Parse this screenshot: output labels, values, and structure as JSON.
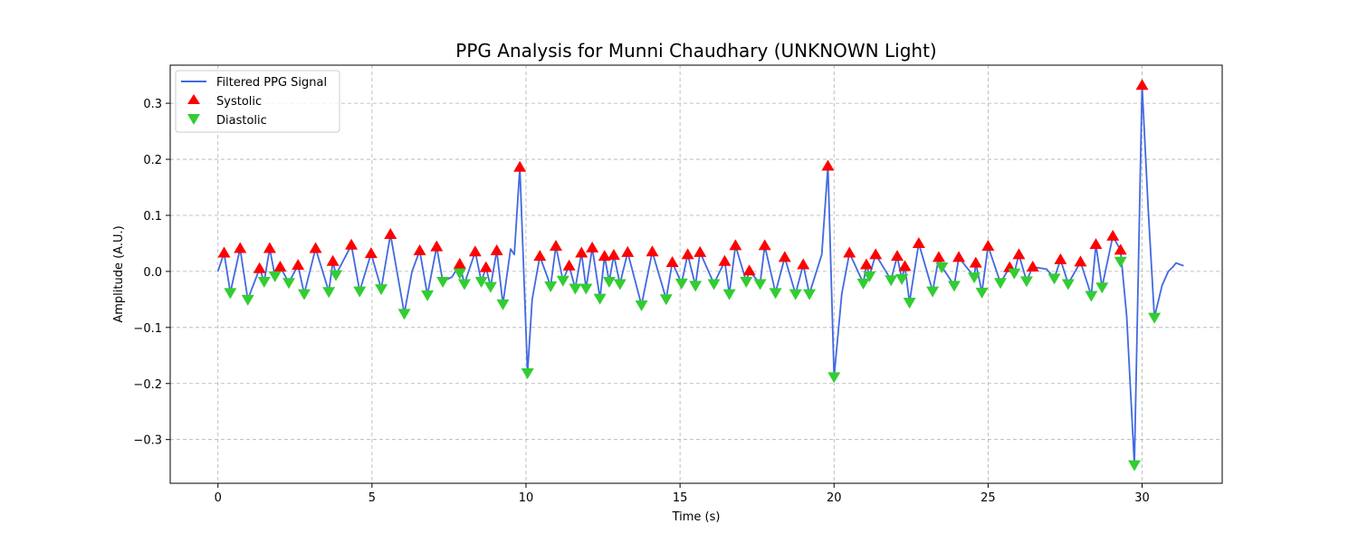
{
  "chart_data": {
    "type": "line",
    "title": "PPG Analysis for Munni Chaudhary (UNKNOWN Light)",
    "xlabel": "Time (s)",
    "ylabel": "Amplitude (A.U.)",
    "xlim": [
      -1.55,
      32.6
    ],
    "ylim": [
      -0.378,
      0.368
    ],
    "xticks": [
      0,
      5,
      10,
      15,
      20,
      25,
      30
    ],
    "yticks": [
      -0.3,
      -0.2,
      -0.1,
      0.0,
      0.1,
      0.2,
      0.3
    ],
    "xtick_labels": [
      "0",
      "5",
      "10",
      "15",
      "20",
      "25",
      "30"
    ],
    "ytick_labels": [
      "−0.3",
      "−0.2",
      "−0.1",
      "0.0",
      "0.1",
      "0.2",
      "0.3"
    ],
    "grid": true,
    "legend_position": "top-left",
    "colors": {
      "signal": "#4169e1",
      "systolic": "#ff0000",
      "diastolic": "#32cd32"
    },
    "series": [
      {
        "name": "Filtered PPG Signal",
        "kind": "line",
        "points": [
          [
            0.0,
            0.0
          ],
          [
            0.2,
            0.033
          ],
          [
            0.4,
            -0.038
          ],
          [
            0.72,
            0.041
          ],
          [
            0.97,
            -0.05
          ],
          [
            1.35,
            0.005
          ],
          [
            1.5,
            -0.018
          ],
          [
            1.68,
            0.041
          ],
          [
            1.85,
            -0.008
          ],
          [
            2.02,
            0.008
          ],
          [
            2.3,
            -0.02
          ],
          [
            2.6,
            0.011
          ],
          [
            2.8,
            -0.04
          ],
          [
            3.17,
            0.041
          ],
          [
            3.6,
            -0.036
          ],
          [
            3.73,
            0.018
          ],
          [
            3.83,
            -0.006
          ],
          [
            4.33,
            0.047
          ],
          [
            4.6,
            -0.035
          ],
          [
            4.97,
            0.032
          ],
          [
            5.3,
            -0.031
          ],
          [
            5.6,
            0.066
          ],
          [
            6.05,
            -0.075
          ],
          [
            6.3,
            0.0
          ],
          [
            6.55,
            0.037
          ],
          [
            6.8,
            -0.042
          ],
          [
            7.1,
            0.044
          ],
          [
            7.3,
            -0.018
          ],
          [
            7.6,
            -0.01
          ],
          [
            7.85,
            0.013
          ],
          [
            8.0,
            -0.022
          ],
          [
            8.35,
            0.035
          ],
          [
            8.55,
            -0.018
          ],
          [
            8.7,
            0.007
          ],
          [
            8.85,
            -0.027
          ],
          [
            9.05,
            0.037
          ],
          [
            9.25,
            -0.058
          ],
          [
            9.5,
            0.04
          ],
          [
            9.62,
            0.03
          ],
          [
            9.8,
            0.186
          ],
          [
            10.05,
            -0.181
          ],
          [
            10.2,
            -0.05
          ],
          [
            10.45,
            0.027
          ],
          [
            10.8,
            -0.026
          ],
          [
            10.97,
            0.045
          ],
          [
            11.2,
            -0.016
          ],
          [
            11.4,
            0.01
          ],
          [
            11.6,
            -0.03
          ],
          [
            11.8,
            0.033
          ],
          [
            11.95,
            -0.03
          ],
          [
            12.15,
            0.042
          ],
          [
            12.4,
            -0.048
          ],
          [
            12.55,
            0.027
          ],
          [
            12.7,
            -0.018
          ],
          [
            12.85,
            0.029
          ],
          [
            13.05,
            -0.022
          ],
          [
            13.3,
            0.034
          ],
          [
            13.75,
            -0.06
          ],
          [
            14.1,
            0.035
          ],
          [
            14.55,
            -0.049
          ],
          [
            14.75,
            0.016
          ],
          [
            15.05,
            -0.021
          ],
          [
            15.25,
            0.03
          ],
          [
            15.5,
            -0.025
          ],
          [
            15.65,
            0.034
          ],
          [
            16.1,
            -0.022
          ],
          [
            16.45,
            0.018
          ],
          [
            16.6,
            -0.04
          ],
          [
            16.8,
            0.046
          ],
          [
            17.15,
            -0.018
          ],
          [
            17.25,
            0.001
          ],
          [
            17.6,
            -0.022
          ],
          [
            17.75,
            0.046
          ],
          [
            18.1,
            -0.038
          ],
          [
            18.4,
            0.025
          ],
          [
            18.75,
            -0.04
          ],
          [
            19.0,
            0.012
          ],
          [
            19.2,
            -0.04
          ],
          [
            19.6,
            0.03
          ],
          [
            19.8,
            0.188
          ],
          [
            20.0,
            -0.188
          ],
          [
            20.25,
            -0.04
          ],
          [
            20.5,
            0.033
          ],
          [
            20.95,
            -0.021
          ],
          [
            21.05,
            0.012
          ],
          [
            21.15,
            -0.008
          ],
          [
            21.35,
            0.03
          ],
          [
            21.85,
            -0.015
          ],
          [
            22.05,
            0.027
          ],
          [
            22.2,
            -0.013
          ],
          [
            22.3,
            0.009
          ],
          [
            22.45,
            -0.055
          ],
          [
            22.75,
            0.05
          ],
          [
            23.2,
            -0.035
          ],
          [
            23.4,
            0.025
          ],
          [
            23.5,
            0.008
          ],
          [
            23.9,
            -0.025
          ],
          [
            24.05,
            0.025
          ],
          [
            24.55,
            -0.01
          ],
          [
            24.6,
            0.015
          ],
          [
            24.8,
            -0.037
          ],
          [
            25.0,
            0.045
          ],
          [
            25.4,
            -0.02
          ],
          [
            25.7,
            0.007
          ],
          [
            25.85,
            -0.003
          ],
          [
            26.0,
            0.03
          ],
          [
            26.25,
            -0.017
          ],
          [
            26.45,
            0.008
          ],
          [
            26.9,
            0.004
          ],
          [
            27.15,
            -0.012
          ],
          [
            27.35,
            0.021
          ],
          [
            27.6,
            -0.022
          ],
          [
            28.0,
            0.017
          ],
          [
            28.35,
            -0.043
          ],
          [
            28.5,
            0.048
          ],
          [
            28.7,
            -0.028
          ],
          [
            29.05,
            0.063
          ],
          [
            29.3,
            0.038
          ],
          [
            29.5,
            -0.08
          ],
          [
            29.75,
            -0.345
          ],
          [
            30.0,
            0.332
          ],
          [
            30.2,
            0.11
          ],
          [
            30.4,
            -0.082
          ],
          [
            30.65,
            -0.025
          ],
          [
            30.85,
            0.0
          ],
          [
            31.0,
            0.008
          ],
          [
            31.1,
            0.015
          ],
          [
            31.25,
            0.012
          ],
          [
            31.35,
            0.01
          ]
        ]
      },
      {
        "name": "Systolic",
        "kind": "scatter",
        "marker": "triangle-up",
        "points": [
          [
            0.2,
            0.033
          ],
          [
            0.72,
            0.041
          ],
          [
            1.35,
            0.005
          ],
          [
            1.68,
            0.041
          ],
          [
            2.02,
            0.008
          ],
          [
            2.6,
            0.011
          ],
          [
            3.17,
            0.041
          ],
          [
            3.73,
            0.018
          ],
          [
            4.33,
            0.047
          ],
          [
            4.97,
            0.032
          ],
          [
            5.6,
            0.066
          ],
          [
            6.55,
            0.037
          ],
          [
            7.1,
            0.044
          ],
          [
            7.85,
            0.013
          ],
          [
            8.35,
            0.035
          ],
          [
            8.7,
            0.007
          ],
          [
            9.05,
            0.037
          ],
          [
            9.8,
            0.186
          ],
          [
            10.45,
            0.027
          ],
          [
            10.97,
            0.045
          ],
          [
            11.4,
            0.01
          ],
          [
            11.8,
            0.033
          ],
          [
            12.15,
            0.042
          ],
          [
            12.55,
            0.027
          ],
          [
            12.85,
            0.029
          ],
          [
            13.3,
            0.034
          ],
          [
            14.1,
            0.035
          ],
          [
            14.75,
            0.016
          ],
          [
            15.25,
            0.03
          ],
          [
            15.65,
            0.034
          ],
          [
            16.45,
            0.018
          ],
          [
            16.8,
            0.046
          ],
          [
            17.25,
            0.001
          ],
          [
            17.75,
            0.046
          ],
          [
            18.4,
            0.025
          ],
          [
            19.0,
            0.012
          ],
          [
            19.8,
            0.188
          ],
          [
            20.5,
            0.033
          ],
          [
            21.05,
            0.012
          ],
          [
            21.35,
            0.03
          ],
          [
            22.05,
            0.027
          ],
          [
            22.3,
            0.009
          ],
          [
            22.75,
            0.05
          ],
          [
            23.4,
            0.025
          ],
          [
            24.05,
            0.025
          ],
          [
            24.6,
            0.015
          ],
          [
            25.0,
            0.045
          ],
          [
            25.7,
            0.007
          ],
          [
            26.0,
            0.03
          ],
          [
            26.45,
            0.008
          ],
          [
            27.35,
            0.021
          ],
          [
            28.0,
            0.017
          ],
          [
            28.5,
            0.048
          ],
          [
            29.05,
            0.063
          ],
          [
            29.3,
            0.038
          ],
          [
            30.0,
            0.332
          ]
        ]
      },
      {
        "name": "Diastolic",
        "kind": "scatter",
        "marker": "triangle-down",
        "points": [
          [
            0.4,
            -0.038
          ],
          [
            0.97,
            -0.05
          ],
          [
            1.5,
            -0.018
          ],
          [
            1.85,
            -0.008
          ],
          [
            2.3,
            -0.02
          ],
          [
            2.8,
            -0.04
          ],
          [
            3.6,
            -0.036
          ],
          [
            3.83,
            -0.006
          ],
          [
            4.6,
            -0.035
          ],
          [
            5.3,
            -0.031
          ],
          [
            6.05,
            -0.075
          ],
          [
            6.8,
            -0.042
          ],
          [
            7.3,
            -0.018
          ],
          [
            7.85,
            -0.003
          ],
          [
            8.0,
            -0.022
          ],
          [
            8.55,
            -0.018
          ],
          [
            8.85,
            -0.027
          ],
          [
            9.25,
            -0.058
          ],
          [
            10.05,
            -0.181
          ],
          [
            10.8,
            -0.026
          ],
          [
            11.2,
            -0.016
          ],
          [
            11.6,
            -0.03
          ],
          [
            11.95,
            -0.03
          ],
          [
            12.4,
            -0.048
          ],
          [
            12.7,
            -0.018
          ],
          [
            13.05,
            -0.022
          ],
          [
            13.75,
            -0.06
          ],
          [
            14.55,
            -0.049
          ],
          [
            15.05,
            -0.021
          ],
          [
            15.5,
            -0.025
          ],
          [
            16.1,
            -0.022
          ],
          [
            16.6,
            -0.04
          ],
          [
            17.15,
            -0.018
          ],
          [
            17.6,
            -0.022
          ],
          [
            18.1,
            -0.038
          ],
          [
            18.75,
            -0.04
          ],
          [
            19.2,
            -0.04
          ],
          [
            20.0,
            -0.188
          ],
          [
            20.95,
            -0.021
          ],
          [
            21.15,
            -0.008
          ],
          [
            21.85,
            -0.015
          ],
          [
            22.2,
            -0.013
          ],
          [
            22.45,
            -0.055
          ],
          [
            23.2,
            -0.035
          ],
          [
            23.5,
            0.008
          ],
          [
            23.9,
            -0.025
          ],
          [
            24.55,
            -0.01
          ],
          [
            24.8,
            -0.037
          ],
          [
            25.4,
            -0.02
          ],
          [
            25.85,
            -0.003
          ],
          [
            26.25,
            -0.017
          ],
          [
            27.15,
            -0.012
          ],
          [
            27.6,
            -0.022
          ],
          [
            28.35,
            -0.043
          ],
          [
            28.7,
            -0.028
          ],
          [
            29.3,
            0.018
          ],
          [
            29.75,
            -0.345
          ],
          [
            30.4,
            -0.082
          ]
        ]
      }
    ],
    "legend": [
      {
        "label": "Filtered PPG Signal",
        "type": "line"
      },
      {
        "label": "Systolic",
        "type": "triangle-up"
      },
      {
        "label": "Diastolic",
        "type": "triangle-down"
      }
    ]
  }
}
